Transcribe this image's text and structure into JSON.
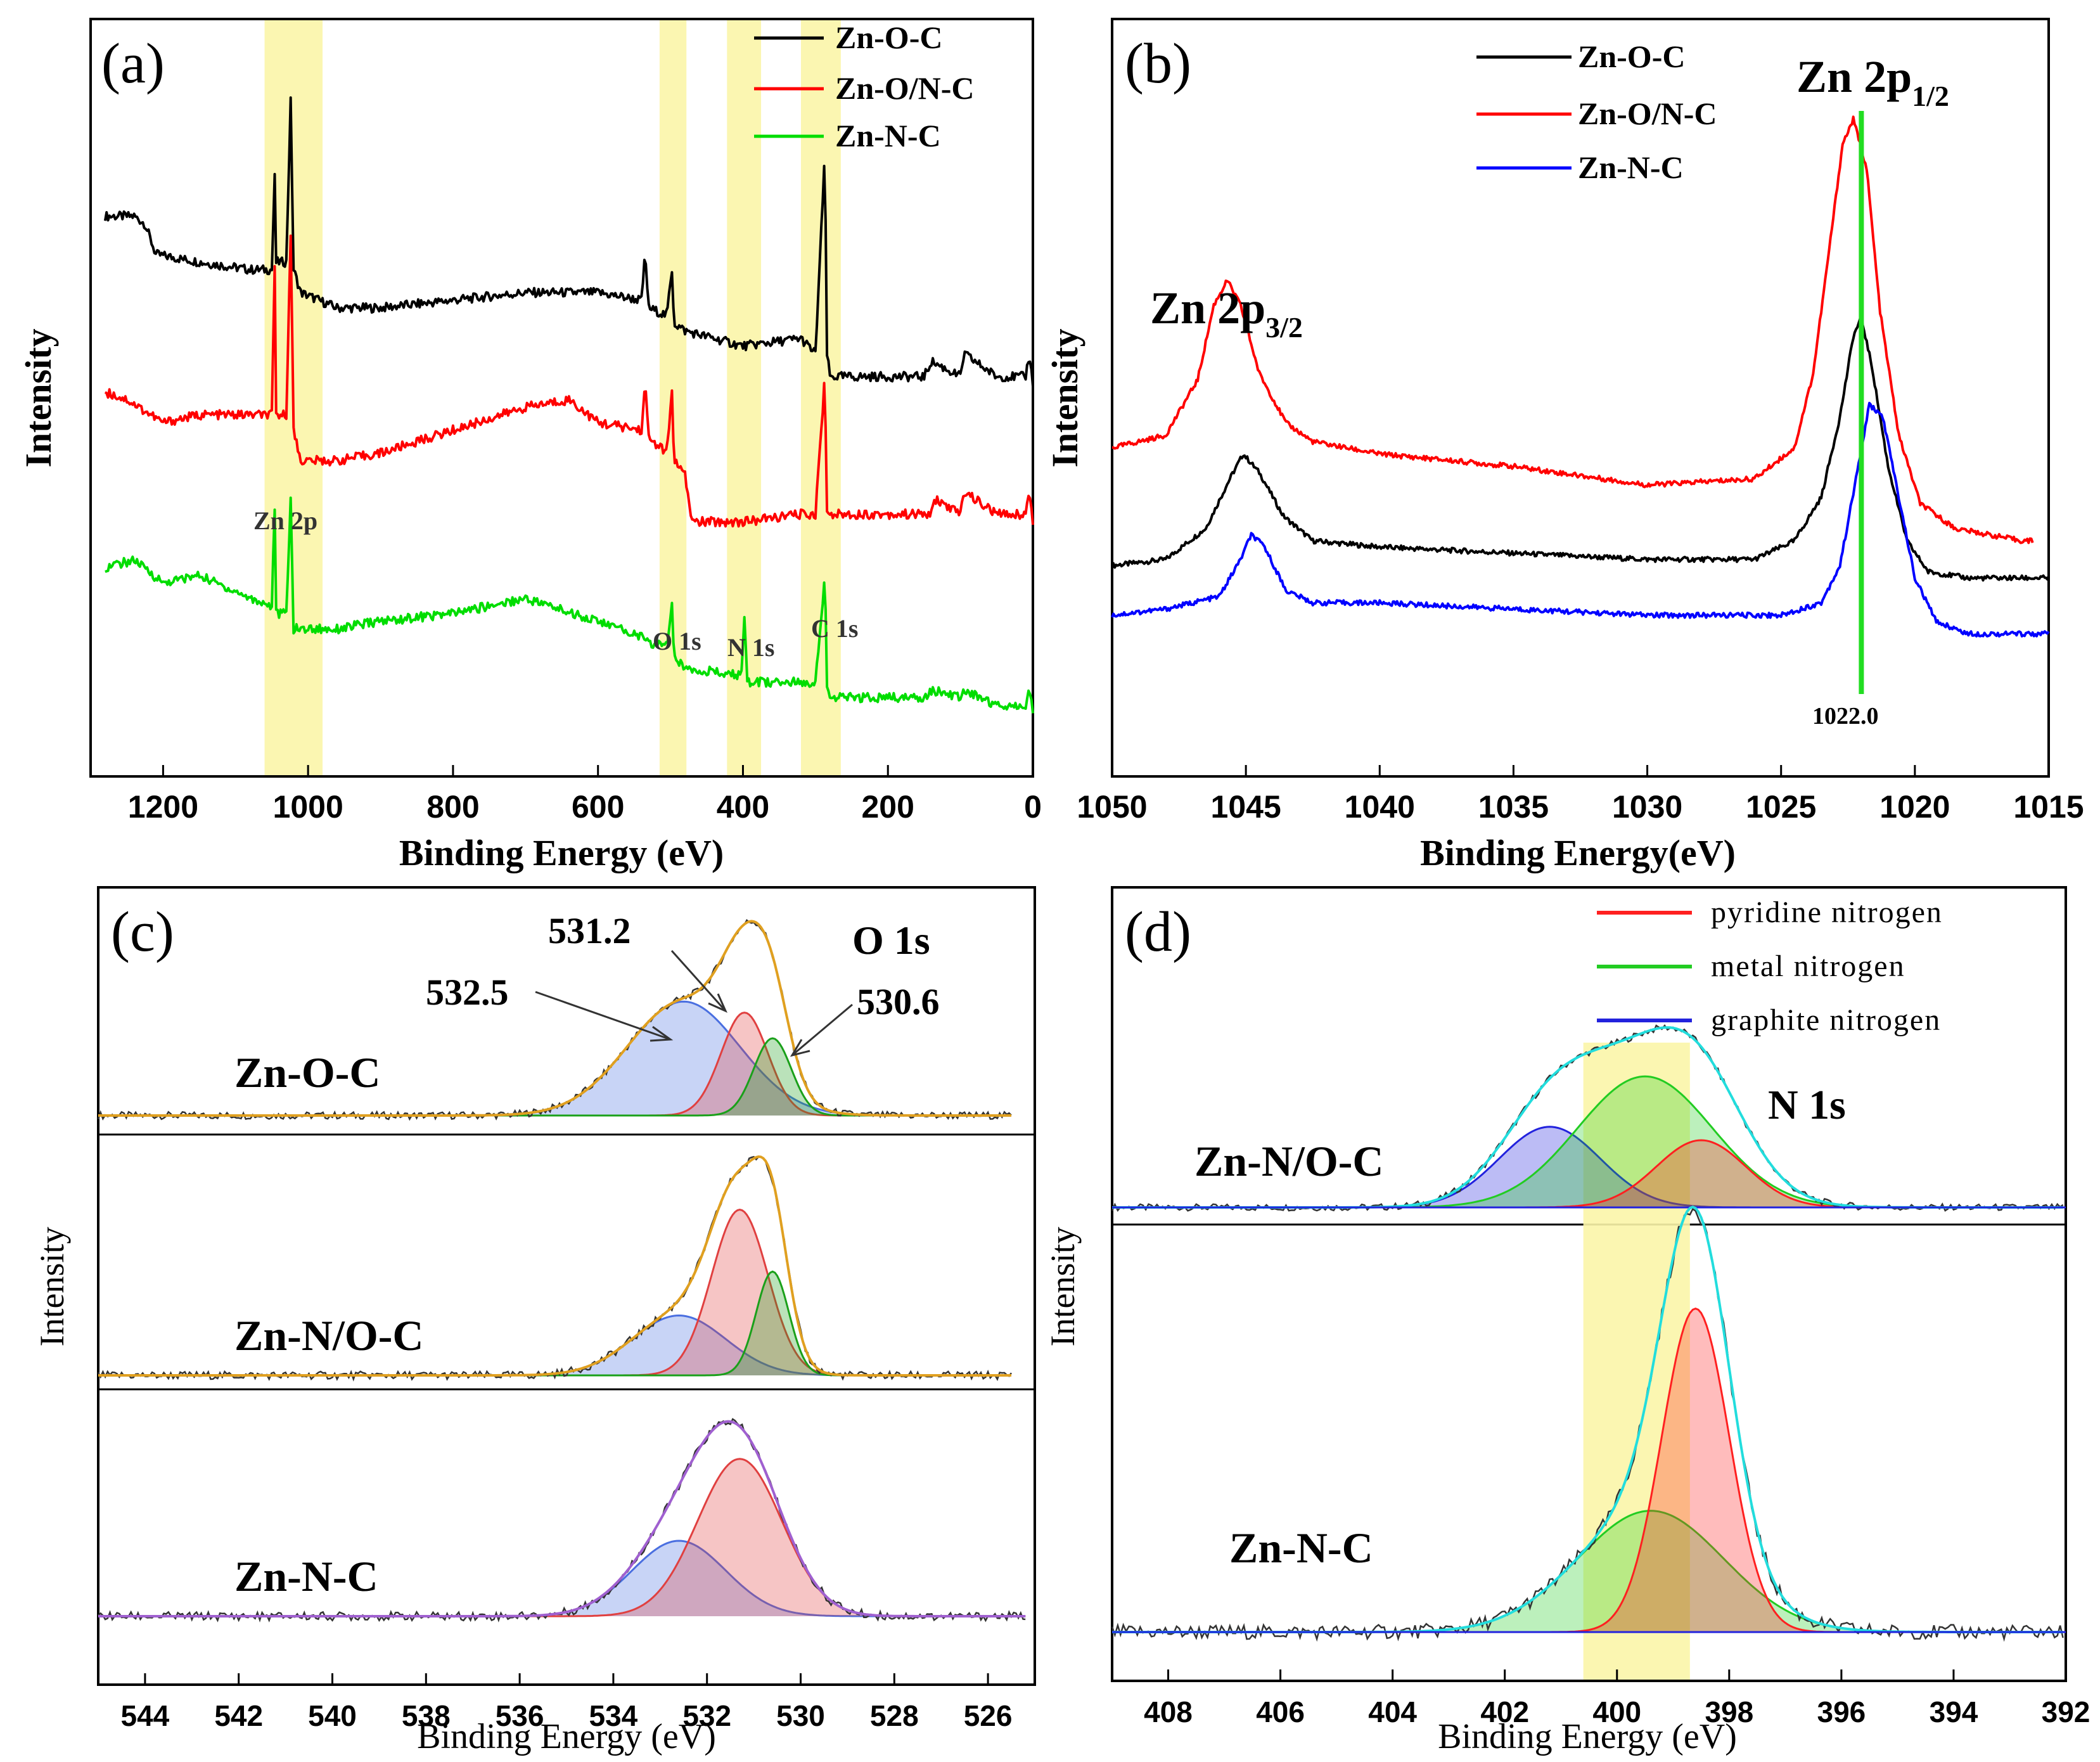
{
  "chart_data": [
    {
      "type": "line",
      "panel": "(a)",
      "title": "",
      "xlabel": "Binding Energy (eV)",
      "ylabel": "Intensity",
      "xlim": [
        1300,
        0
      ],
      "x_ticks": [
        "1200",
        "1000",
        "800",
        "600",
        "400",
        "200",
        "0"
      ],
      "legend": [
        "Zn-O-C",
        "Zn-O/N-C",
        "Zn-N-C"
      ],
      "colors": [
        "#000000",
        "#ff0000",
        "#00dd00"
      ],
      "annotations": [
        "Zn  2p",
        "O 1s",
        "N 1s",
        "C 1s"
      ],
      "highlight_bands_ev": [
        [
          1060,
          980
        ],
        [
          515,
          478
        ],
        [
          422,
          375
        ],
        [
          320,
          265
        ]
      ],
      "series": [
        {
          "name": "Zn-O-C",
          "x": [
            1280,
            1240,
            1225,
            1210,
            1150,
            1080,
            1050,
            1046,
            1044,
            1030,
            1024,
            1020,
            1010,
            960,
            900,
            800,
            700,
            600,
            540,
            535,
            530,
            505,
            498,
            495,
            480,
            400,
            320,
            300,
            287,
            284,
            280,
            250,
            200,
            150,
            140,
            100,
            95,
            50,
            10,
            5,
            0
          ],
          "y": [
            0.7,
            0.7,
            0.69,
            0.65,
            0.64,
            0.63,
            0.63,
            0.75,
            0.64,
            0.64,
            0.85,
            0.63,
            0.6,
            0.58,
            0.58,
            0.59,
            0.6,
            0.6,
            0.59,
            0.65,
            0.58,
            0.57,
            0.63,
            0.56,
            0.55,
            0.53,
            0.54,
            0.52,
            0.78,
            0.52,
            0.49,
            0.49,
            0.49,
            0.49,
            0.51,
            0.49,
            0.52,
            0.49,
            0.49,
            0.52,
            0.48
          ]
        },
        {
          "name": "Zn-O/N-C",
          "x": [
            1280,
            1250,
            1200,
            1150,
            1080,
            1050,
            1046,
            1044,
            1030,
            1024,
            1020,
            1010,
            960,
            900,
            800,
            700,
            640,
            600,
            540,
            535,
            530,
            505,
            498,
            495,
            480,
            470,
            400,
            320,
            300,
            287,
            284,
            280,
            250,
            200,
            140,
            135,
            100,
            95,
            50,
            10,
            5,
            0
          ],
          "y": [
            0.47,
            0.46,
            0.43,
            0.44,
            0.44,
            0.44,
            0.63,
            0.44,
            0.44,
            0.68,
            0.42,
            0.38,
            0.38,
            0.39,
            0.42,
            0.45,
            0.46,
            0.43,
            0.42,
            0.48,
            0.41,
            0.39,
            0.47,
            0.38,
            0.36,
            0.3,
            0.3,
            0.31,
            0.31,
            0.49,
            0.31,
            0.31,
            0.31,
            0.31,
            0.31,
            0.33,
            0.31,
            0.34,
            0.31,
            0.31,
            0.34,
            0.3
          ]
        },
        {
          "name": "Zn-N-C",
          "x": [
            1280,
            1240,
            1200,
            1150,
            1080,
            1050,
            1046,
            1044,
            1030,
            1024,
            1020,
            1010,
            960,
            900,
            800,
            700,
            600,
            540,
            530,
            505,
            498,
            495,
            480,
            420,
            402,
            398,
            394,
            380,
            320,
            300,
            287,
            284,
            280,
            250,
            200,
            150,
            140,
            100,
            95,
            50,
            10,
            5,
            0
          ],
          "y": [
            0.24,
            0.25,
            0.22,
            0.23,
            0.2,
            0.19,
            0.32,
            0.18,
            0.18,
            0.33,
            0.16,
            0.16,
            0.16,
            0.17,
            0.18,
            0.2,
            0.17,
            0.15,
            0.14,
            0.14,
            0.19,
            0.12,
            0.11,
            0.1,
            0.1,
            0.17,
            0.09,
            0.09,
            0.09,
            0.09,
            0.23,
            0.08,
            0.07,
            0.07,
            0.07,
            0.07,
            0.08,
            0.07,
            0.08,
            0.06,
            0.06,
            0.08,
            0.05
          ]
        }
      ]
    },
    {
      "type": "line",
      "panel": "(b)",
      "title": "",
      "xlabel": "Binding Energy(eV)",
      "ylabel": "Intensity",
      "xlim": [
        1050,
        1015
      ],
      "x_ticks": [
        "1050",
        "1045",
        "1040",
        "1035",
        "1030",
        "1025",
        "1020",
        "1015"
      ],
      "legend": [
        "Zn-O-C",
        "Zn-O/N-C",
        "Zn-N-C"
      ],
      "colors": [
        "#000000",
        "#ff0000",
        "#0000ff"
      ],
      "annotations": [
        "Zn 2p3/2",
        "Zn 2p1/2",
        "1022.0"
      ],
      "peak_marker_ev": 1022.0,
      "series": [
        {
          "name": "Zn-O-C",
          "x": [
            1050,
            1048,
            1046.5,
            1045.6,
            1045.1,
            1044.5,
            1043.6,
            1042.5,
            1040,
            1035,
            1030,
            1026,
            1024.5,
            1023.5,
            1022.8,
            1022.3,
            1022.0,
            1021.6,
            1021.0,
            1020.3,
            1019.5,
            1018,
            1016,
            1015
          ],
          "y": [
            0.34,
            0.35,
            0.4,
            0.48,
            0.52,
            0.49,
            0.42,
            0.38,
            0.37,
            0.36,
            0.35,
            0.35,
            0.38,
            0.45,
            0.58,
            0.71,
            0.74,
            0.66,
            0.5,
            0.38,
            0.33,
            0.32,
            0.32,
            0.32
          ]
        },
        {
          "name": "Zn-O/N-C",
          "x": [
            1050,
            1048,
            1046.8,
            1046.2,
            1045.7,
            1045.2,
            1044.5,
            1043.5,
            1042.5,
            1040,
            1035,
            1030,
            1026,
            1024.5,
            1023.8,
            1023.2,
            1022.7,
            1022.3,
            1021.8,
            1021.3,
            1020.6,
            1019.8,
            1018.5,
            1016,
            1015.6
          ],
          "y": [
            0.53,
            0.55,
            0.64,
            0.76,
            0.8,
            0.76,
            0.65,
            0.57,
            0.54,
            0.52,
            0.5,
            0.47,
            0.48,
            0.53,
            0.65,
            0.85,
            1.02,
            1.06,
            0.98,
            0.75,
            0.55,
            0.44,
            0.4,
            0.38,
            0.38
          ]
        },
        {
          "name": "Zn-N-C",
          "x": [
            1050,
            1048,
            1046,
            1045.2,
            1044.8,
            1044.3,
            1043.5,
            1042.5,
            1040,
            1035,
            1030,
            1025,
            1023.5,
            1022.8,
            1022.2,
            1021.7,
            1021.2,
            1020.6,
            1020.0,
            1019.2,
            1018,
            1016,
            1015
          ],
          "y": [
            0.26,
            0.27,
            0.29,
            0.35,
            0.39,
            0.37,
            0.3,
            0.28,
            0.28,
            0.27,
            0.26,
            0.26,
            0.28,
            0.34,
            0.48,
            0.6,
            0.58,
            0.45,
            0.32,
            0.25,
            0.23,
            0.23,
            0.23
          ]
        }
      ]
    },
    {
      "type": "area",
      "panel": "(c)",
      "title": "O 1s",
      "xlabel": "Binding Energy (eV)",
      "ylabel": "Intensity",
      "xlim": [
        545,
        525
      ],
      "x_ticks": [
        "544",
        "542",
        "540",
        "538",
        "536",
        "534",
        "532",
        "530",
        "528",
        "526"
      ],
      "annotations": [
        "531.2",
        "532.5",
        "530.6"
      ],
      "subplots": [
        {
          "name": "Zn-O-C",
          "components": [
            {
              "center": 532.5,
              "height": 0.62,
              "sigma": 1.2,
              "color": "#4a6fe0"
            },
            {
              "center": 531.2,
              "height": 0.56,
              "sigma": 0.5,
              "color": "#e04040"
            },
            {
              "center": 530.6,
              "height": 0.42,
              "sigma": 0.4,
              "color": "#1aa01a"
            }
          ]
        },
        {
          "name": "Zn-N/O-C",
          "components": [
            {
              "center": 532.6,
              "height": 0.3,
              "sigma": 1.0,
              "color": "#4a6fe0"
            },
            {
              "center": 531.3,
              "height": 0.83,
              "sigma": 0.6,
              "color": "#e04040"
            },
            {
              "center": 530.6,
              "height": 0.52,
              "sigma": 0.35,
              "color": "#1aa01a"
            }
          ]
        },
        {
          "name": "Zn-N-C",
          "components": [
            {
              "center": 532.6,
              "height": 0.35,
              "sigma": 1.0,
              "color": "#4a6fe0"
            },
            {
              "center": 531.3,
              "height": 0.73,
              "sigma": 0.9,
              "color": "#e04040"
            }
          ]
        }
      ]
    },
    {
      "type": "area",
      "panel": "(d)",
      "title": "N 1s",
      "xlabel": "Binding Energy (eV)",
      "ylabel": "Intensity",
      "xlim": [
        409,
        392
      ],
      "x_ticks": [
        "408",
        "406",
        "404",
        "402",
        "400",
        "398",
        "396",
        "394",
        "392"
      ],
      "legend": [
        "pyridine nitrogen",
        "metal nitrogen",
        "graphite nitrogen"
      ],
      "colors": [
        "#ff2020",
        "#22cc22",
        "#2222dd"
      ],
      "highlight_band_ev": [
        400.6,
        398.7
      ],
      "subplots": [
        {
          "name": "Zn-N/O-C",
          "components": [
            {
              "label": "graphite nitrogen",
              "center": 401.2,
              "height": 0.48,
              "sigma": 0.9,
              "color": "#2222dd"
            },
            {
              "label": "metal nitrogen",
              "center": 399.5,
              "height": 0.78,
              "sigma": 1.2,
              "color": "#22cc22"
            },
            {
              "label": "pyridine nitrogen",
              "center": 398.5,
              "height": 0.4,
              "sigma": 0.8,
              "color": "#ff2020"
            }
          ]
        },
        {
          "name": "Zn-N-C",
          "components": [
            {
              "label": "metal nitrogen",
              "center": 399.4,
              "height": 0.33,
              "sigma": 1.3,
              "color": "#22cc22"
            },
            {
              "label": "pyridine nitrogen",
              "center": 398.6,
              "height": 0.88,
              "sigma": 0.6,
              "color": "#ff2020"
            }
          ]
        }
      ]
    }
  ]
}
